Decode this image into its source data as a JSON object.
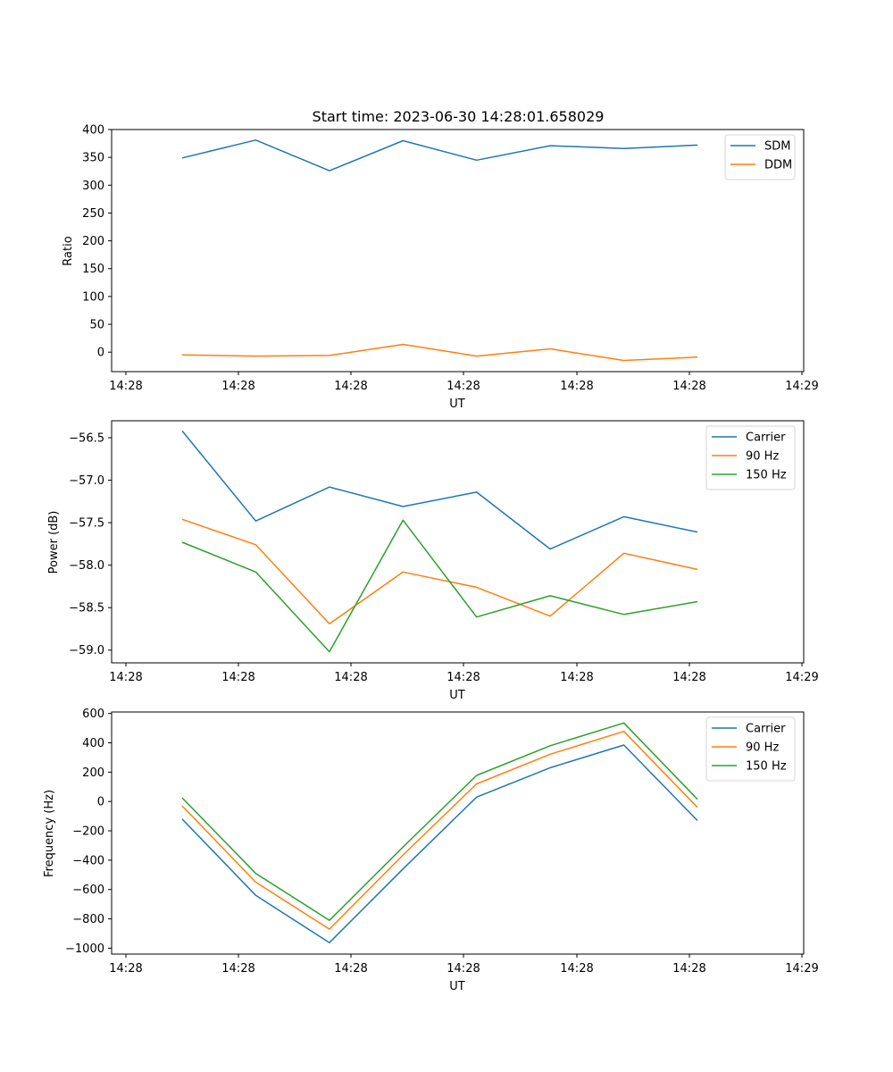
{
  "figure": {
    "title": "Start time: 2023-06-30 14:28:01.658029"
  },
  "chart_data": [
    {
      "type": "line",
      "title": "Start time: 2023-06-30 14:28:01.658029",
      "xlabel": "UT",
      "ylabel": "Ratio",
      "x_tick_labels": [
        "14:28",
        "14:28",
        "14:28",
        "14:28",
        "14:28",
        "14:28",
        "14:29"
      ],
      "y_ticks": [
        0,
        50,
        100,
        150,
        200,
        250,
        300,
        350,
        400
      ],
      "ylim": [
        -35,
        400
      ],
      "grid": false,
      "legend_position": "top-right",
      "series": [
        {
          "name": "SDM",
          "color": "#1f77b4",
          "values": [
            349,
            381,
            326,
            380,
            345,
            371,
            366,
            372
          ]
        },
        {
          "name": "DDM",
          "color": "#ff7f0e",
          "values": [
            -5,
            -7,
            -6,
            14,
            -7,
            6,
            -15,
            -9
          ]
        }
      ]
    },
    {
      "type": "line",
      "xlabel": "UT",
      "ylabel": "Power (dB)",
      "x_tick_labels": [
        "14:28",
        "14:28",
        "14:28",
        "14:28",
        "14:28",
        "14:28",
        "14:29"
      ],
      "y_ticks": [
        -59.0,
        -58.5,
        -58.0,
        -57.5,
        -57.0,
        -56.5
      ],
      "y_tick_labels": [
        "−59.0",
        "−58.5",
        "−58.0",
        "−57.5",
        "−57.0",
        "−56.5"
      ],
      "ylim": [
        -59.15,
        -56.3
      ],
      "grid": false,
      "legend_position": "top-right",
      "series": [
        {
          "name": "Carrier",
          "color": "#1f77b4",
          "values": [
            -56.42,
            -57.48,
            -57.08,
            -57.31,
            -57.14,
            -57.81,
            -57.43,
            -57.61
          ]
        },
        {
          "name": "90 Hz",
          "color": "#ff7f0e",
          "values": [
            -57.46,
            -57.76,
            -58.69,
            -58.08,
            -58.26,
            -58.6,
            -57.86,
            -58.05
          ]
        },
        {
          "name": "150 Hz",
          "color": "#2ca02c",
          "values": [
            -57.73,
            -58.08,
            -59.02,
            -57.47,
            -58.61,
            -58.36,
            -58.58,
            -58.43
          ]
        }
      ]
    },
    {
      "type": "line",
      "xlabel": "UT",
      "ylabel": "Frequency (Hz)",
      "x_tick_labels": [
        "14:28",
        "14:28",
        "14:28",
        "14:28",
        "14:28",
        "14:28",
        "14:29"
      ],
      "y_ticks": [
        -1000,
        -800,
        -600,
        -400,
        -200,
        0,
        200,
        400,
        600
      ],
      "y_tick_labels": [
        "−1000",
        "−800",
        "−600",
        "−400",
        "−200",
        "0",
        "200",
        "400",
        "600"
      ],
      "ylim": [
        -1040,
        610
      ],
      "grid": false,
      "legend_position": "top-right",
      "series": [
        {
          "name": "Carrier",
          "color": "#1f77b4",
          "values": [
            -120,
            -640,
            -962,
            -460,
            30,
            230,
            385,
            -130
          ]
        },
        {
          "name": "90 Hz",
          "color": "#ff7f0e",
          "values": [
            -30,
            -550,
            -870,
            -365,
            120,
            322,
            478,
            -40
          ]
        },
        {
          "name": "150 Hz",
          "color": "#2ca02c",
          "values": [
            25,
            -490,
            -810,
            -310,
            178,
            380,
            535,
            15
          ]
        }
      ]
    }
  ]
}
